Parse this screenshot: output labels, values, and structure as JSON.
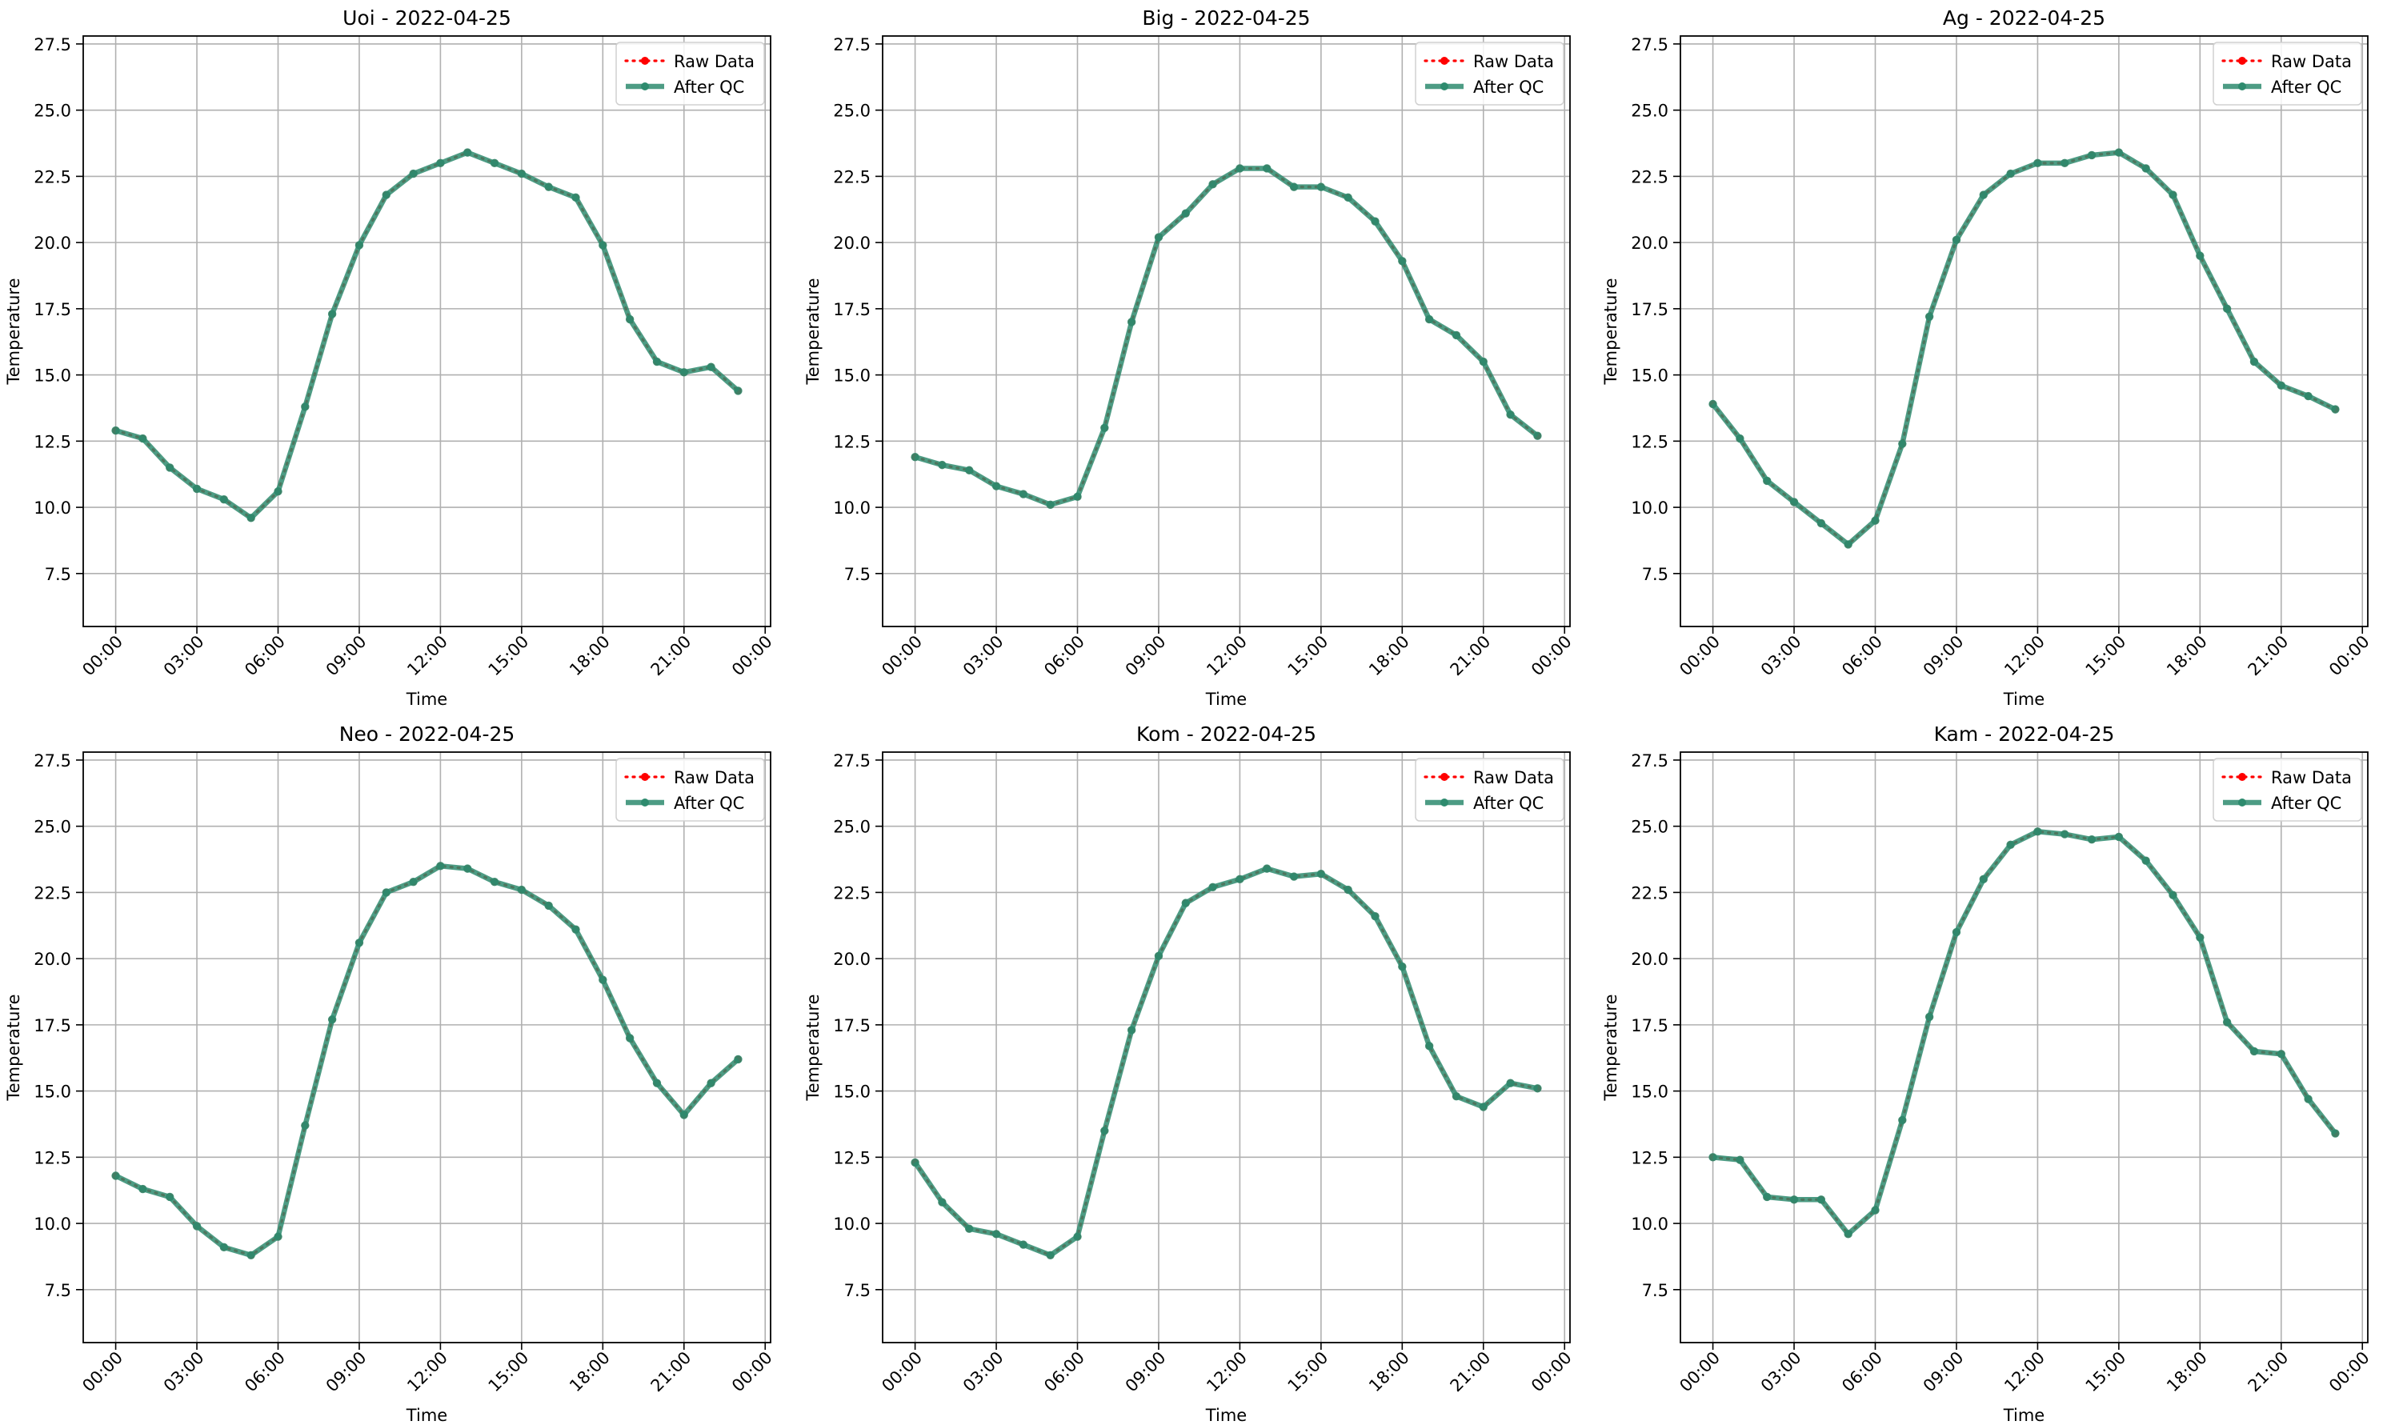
{
  "colors": {
    "raw": "#ff0000",
    "qc": "#2e8b6e",
    "grid": "#b0b0b0",
    "axis": "#000000"
  },
  "legend_labels": [
    "Raw Data",
    "After QC"
  ],
  "chart_data": [
    {
      "type": "line",
      "title": "Uoi - 2022-04-25",
      "xlabel": "Time",
      "ylabel": "Temperature",
      "ylim": [
        5.5,
        27.8
      ],
      "xlim": [
        -1.2,
        24.2
      ],
      "yticks": [
        "7.5",
        "10.0",
        "12.5",
        "15.0",
        "17.5",
        "20.0",
        "22.5",
        "25.0",
        "27.5"
      ],
      "xticks": [
        "00:00",
        "03:00",
        "06:00",
        "09:00",
        "12:00",
        "15:00",
        "18:00",
        "21:00",
        "00:00"
      ],
      "grid": true,
      "legend_position": "top-right",
      "x": [
        0,
        1,
        2,
        3,
        4,
        5,
        6,
        7,
        8,
        9,
        10,
        11,
        12,
        13,
        14,
        15,
        16,
        17,
        18,
        19,
        20,
        21,
        22,
        23
      ],
      "series": [
        {
          "name": "Raw Data",
          "values": [
            12.9,
            12.6,
            11.5,
            10.7,
            10.3,
            9.6,
            10.6,
            13.8,
            17.3,
            19.9,
            21.8,
            22.6,
            23.0,
            23.4,
            23.0,
            22.6,
            22.1,
            21.7,
            19.9,
            17.1,
            15.5,
            15.1,
            15.3,
            14.4
          ]
        },
        {
          "name": "After QC",
          "values": [
            12.9,
            12.6,
            11.5,
            10.7,
            10.3,
            9.6,
            10.6,
            13.8,
            17.3,
            19.9,
            21.8,
            22.6,
            23.0,
            23.4,
            23.0,
            22.6,
            22.1,
            21.7,
            19.9,
            17.1,
            15.5,
            15.1,
            15.3,
            14.4
          ]
        }
      ]
    },
    {
      "type": "line",
      "title": "Big - 2022-04-25",
      "xlabel": "Time",
      "ylabel": "Temperature",
      "ylim": [
        5.5,
        27.8
      ],
      "xlim": [
        -1.2,
        24.2
      ],
      "yticks": [
        "7.5",
        "10.0",
        "12.5",
        "15.0",
        "17.5",
        "20.0",
        "22.5",
        "25.0",
        "27.5"
      ],
      "xticks": [
        "00:00",
        "03:00",
        "06:00",
        "09:00",
        "12:00",
        "15:00",
        "18:00",
        "21:00",
        "00:00"
      ],
      "grid": true,
      "legend_position": "top-right",
      "x": [
        0,
        1,
        2,
        3,
        4,
        5,
        6,
        7,
        8,
        9,
        10,
        11,
        12,
        13,
        14,
        15,
        16,
        17,
        18,
        19,
        20,
        21,
        22,
        23
      ],
      "series": [
        {
          "name": "Raw Data",
          "values": [
            11.9,
            11.6,
            11.4,
            10.8,
            10.5,
            10.1,
            10.4,
            13.0,
            17.0,
            20.2,
            21.1,
            22.2,
            22.8,
            22.8,
            22.1,
            22.1,
            21.7,
            20.8,
            19.3,
            17.1,
            16.5,
            15.5,
            13.5,
            12.7
          ]
        },
        {
          "name": "After QC",
          "values": [
            11.9,
            11.6,
            11.4,
            10.8,
            10.5,
            10.1,
            10.4,
            13.0,
            17.0,
            20.2,
            21.1,
            22.2,
            22.8,
            22.8,
            22.1,
            22.1,
            21.7,
            20.8,
            19.3,
            17.1,
            16.5,
            15.5,
            13.5,
            12.7
          ]
        }
      ]
    },
    {
      "type": "line",
      "title": "Ag - 2022-04-25",
      "xlabel": "Time",
      "ylabel": "Temperature",
      "ylim": [
        5.5,
        27.8
      ],
      "xlim": [
        -1.2,
        24.2
      ],
      "yticks": [
        "7.5",
        "10.0",
        "12.5",
        "15.0",
        "17.5",
        "20.0",
        "22.5",
        "25.0",
        "27.5"
      ],
      "xticks": [
        "00:00",
        "03:00",
        "06:00",
        "09:00",
        "12:00",
        "15:00",
        "18:00",
        "21:00",
        "00:00"
      ],
      "grid": true,
      "legend_position": "top-right",
      "x": [
        0,
        1,
        2,
        3,
        4,
        5,
        6,
        7,
        8,
        9,
        10,
        11,
        12,
        13,
        14,
        15,
        16,
        17,
        18,
        19,
        20,
        21,
        22,
        23
      ],
      "series": [
        {
          "name": "Raw Data",
          "values": [
            13.9,
            12.6,
            11.0,
            10.2,
            9.4,
            8.6,
            9.5,
            12.4,
            17.2,
            20.1,
            21.8,
            22.6,
            23.0,
            23.0,
            23.3,
            23.4,
            22.8,
            21.8,
            19.5,
            17.5,
            15.5,
            14.6,
            14.2,
            13.7
          ]
        },
        {
          "name": "After QC",
          "values": [
            13.9,
            12.6,
            11.0,
            10.2,
            9.4,
            8.6,
            9.5,
            12.4,
            17.2,
            20.1,
            21.8,
            22.6,
            23.0,
            23.0,
            23.3,
            23.4,
            22.8,
            21.8,
            19.5,
            17.5,
            15.5,
            14.6,
            14.2,
            13.7
          ]
        }
      ]
    },
    {
      "type": "line",
      "title": "Neo - 2022-04-25",
      "xlabel": "Time",
      "ylabel": "Temperature",
      "ylim": [
        5.5,
        27.8
      ],
      "xlim": [
        -1.2,
        24.2
      ],
      "yticks": [
        "7.5",
        "10.0",
        "12.5",
        "15.0",
        "17.5",
        "20.0",
        "22.5",
        "25.0",
        "27.5"
      ],
      "xticks": [
        "00:00",
        "03:00",
        "06:00",
        "09:00",
        "12:00",
        "15:00",
        "18:00",
        "21:00",
        "00:00"
      ],
      "grid": true,
      "legend_position": "top-right",
      "x": [
        0,
        1,
        2,
        3,
        4,
        5,
        6,
        7,
        8,
        9,
        10,
        11,
        12,
        13,
        14,
        15,
        16,
        17,
        18,
        19,
        20,
        21,
        22,
        23
      ],
      "series": [
        {
          "name": "Raw Data",
          "values": [
            11.8,
            11.3,
            11.0,
            9.9,
            9.1,
            8.8,
            9.5,
            13.7,
            17.7,
            20.6,
            22.5,
            22.9,
            23.5,
            23.4,
            22.9,
            22.6,
            22.0,
            21.1,
            19.2,
            17.0,
            15.3,
            14.1,
            15.3,
            16.2
          ]
        },
        {
          "name": "After QC",
          "values": [
            11.8,
            11.3,
            11.0,
            9.9,
            9.1,
            8.8,
            9.5,
            13.7,
            17.7,
            20.6,
            22.5,
            22.9,
            23.5,
            23.4,
            22.9,
            22.6,
            22.0,
            21.1,
            19.2,
            17.0,
            15.3,
            14.1,
            15.3,
            16.2
          ]
        }
      ]
    },
    {
      "type": "line",
      "title": "Kom - 2022-04-25",
      "xlabel": "Time",
      "ylabel": "Temperature",
      "ylim": [
        5.5,
        27.8
      ],
      "xlim": [
        -1.2,
        24.2
      ],
      "yticks": [
        "7.5",
        "10.0",
        "12.5",
        "15.0",
        "17.5",
        "20.0",
        "22.5",
        "25.0",
        "27.5"
      ],
      "xticks": [
        "00:00",
        "03:00",
        "06:00",
        "09:00",
        "12:00",
        "15:00",
        "18:00",
        "21:00",
        "00:00"
      ],
      "grid": true,
      "legend_position": "top-right",
      "x": [
        0,
        1,
        2,
        3,
        4,
        5,
        6,
        7,
        8,
        9,
        10,
        11,
        12,
        13,
        14,
        15,
        16,
        17,
        18,
        19,
        20,
        21,
        22,
        23
      ],
      "series": [
        {
          "name": "Raw Data",
          "values": [
            12.3,
            10.8,
            9.8,
            9.6,
            9.2,
            8.8,
            9.5,
            13.5,
            17.3,
            20.1,
            22.1,
            22.7,
            23.0,
            23.4,
            23.1,
            23.2,
            22.6,
            21.6,
            19.7,
            16.7,
            14.8,
            14.4,
            15.3,
            15.1
          ]
        },
        {
          "name": "After QC",
          "values": [
            12.3,
            10.8,
            9.8,
            9.6,
            9.2,
            8.8,
            9.5,
            13.5,
            17.3,
            20.1,
            22.1,
            22.7,
            23.0,
            23.4,
            23.1,
            23.2,
            22.6,
            21.6,
            19.7,
            16.7,
            14.8,
            14.4,
            15.3,
            15.1
          ]
        }
      ]
    },
    {
      "type": "line",
      "title": "Kam - 2022-04-25",
      "xlabel": "Time",
      "ylabel": "Temperature",
      "ylim": [
        5.5,
        27.8
      ],
      "xlim": [
        -1.2,
        24.2
      ],
      "yticks": [
        "7.5",
        "10.0",
        "12.5",
        "15.0",
        "17.5",
        "20.0",
        "22.5",
        "25.0",
        "27.5"
      ],
      "xticks": [
        "00:00",
        "03:00",
        "06:00",
        "09:00",
        "12:00",
        "15:00",
        "18:00",
        "21:00",
        "00:00"
      ],
      "grid": true,
      "legend_position": "top-right",
      "x": [
        0,
        1,
        2,
        3,
        4,
        5,
        6,
        7,
        8,
        9,
        10,
        11,
        12,
        13,
        14,
        15,
        16,
        17,
        18,
        19,
        20,
        21,
        22,
        23
      ],
      "series": [
        {
          "name": "Raw Data",
          "values": [
            12.5,
            12.4,
            11.0,
            10.9,
            10.9,
            9.6,
            10.5,
            13.9,
            17.8,
            21.0,
            23.0,
            24.3,
            24.8,
            24.7,
            24.5,
            24.6,
            23.7,
            22.4,
            20.8,
            17.6,
            16.5,
            16.4,
            14.7,
            13.4
          ]
        },
        {
          "name": "After QC",
          "values": [
            12.5,
            12.4,
            11.0,
            10.9,
            10.9,
            9.6,
            10.5,
            13.9,
            17.8,
            21.0,
            23.0,
            24.3,
            24.8,
            24.7,
            24.5,
            24.6,
            23.7,
            22.4,
            20.8,
            17.6,
            16.5,
            16.4,
            14.7,
            13.4
          ]
        }
      ]
    }
  ]
}
